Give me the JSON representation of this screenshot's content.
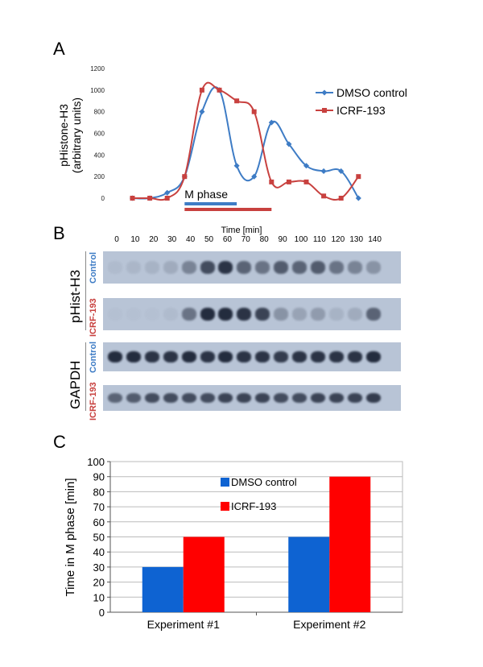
{
  "panels": {
    "a": "A",
    "b": "B",
    "c": "C"
  },
  "colors": {
    "dmso": "#3E7CC5",
    "icrf": "#C8413F",
    "dmso_bar": "#0E63D2",
    "icrf_bar": "#FF0000",
    "blot_bg": "#b8c4d6",
    "band": "#1c2436"
  },
  "chart_data": [
    {
      "type": "line",
      "ylabel_line1": "pHistone-H3",
      "ylabel_line2": "(arbitrary units)",
      "xlabel": "Time [min]",
      "x": [
        0,
        10,
        20,
        30,
        40,
        50,
        60,
        70,
        80,
        90,
        100,
        110,
        120,
        130,
        140
      ],
      "ylim": [
        0,
        1200
      ],
      "yticks": [
        0,
        200,
        400,
        600,
        800,
        1000,
        1200
      ],
      "series": [
        {
          "name": "DMSO control",
          "x": [
            10,
            20,
            30,
            40,
            50,
            60,
            70,
            80,
            90,
            100,
            110,
            120,
            130,
            140
          ],
          "values": [
            0,
            0,
            50,
            200,
            800,
            1000,
            300,
            200,
            700,
            500,
            300,
            250,
            250,
            0
          ]
        },
        {
          "name": "ICRF-193",
          "x": [
            10,
            20,
            30,
            40,
            50,
            60,
            70,
            80,
            90,
            100,
            110,
            120,
            130,
            140
          ],
          "values": [
            0,
            0,
            0,
            200,
            1000,
            1000,
            900,
            800,
            150,
            150,
            150,
            20,
            0,
            200
          ]
        }
      ],
      "annotation": "M phase",
      "mphase": {
        "dmso": [
          40,
          70
        ],
        "icrf": [
          40,
          90
        ]
      }
    },
    {
      "type": "bar",
      "ylabel": "Time in M phase [min]",
      "categories": [
        "Experiment #1",
        "Experiment #2"
      ],
      "ylim": [
        0,
        100
      ],
      "yticks": [
        0,
        10,
        20,
        30,
        40,
        50,
        60,
        70,
        80,
        90,
        100
      ],
      "series": [
        {
          "name": "DMSO control",
          "values": [
            30,
            50
          ]
        },
        {
          "name": "ICRF-193",
          "values": [
            50,
            90
          ]
        }
      ]
    }
  ],
  "blot": {
    "time_labels": [
      "0",
      "10",
      "20",
      "30",
      "40",
      "50",
      "60",
      "70",
      "80",
      "90",
      "100",
      "110",
      "120",
      "130",
      "140"
    ],
    "groups": [
      {
        "label": "pHist-H3",
        "rows": [
          {
            "label": "Control",
            "intensity": [
              0.05,
              0.08,
              0.1,
              0.15,
              0.4,
              0.75,
              0.9,
              0.6,
              0.5,
              0.65,
              0.6,
              0.65,
              0.5,
              0.4,
              0.3
            ]
          },
          {
            "label": "ICRF-193",
            "intensity": [
              0.02,
              0.02,
              0.02,
              0.05,
              0.5,
              0.95,
              0.95,
              0.9,
              0.8,
              0.3,
              0.2,
              0.25,
              0.1,
              0.15,
              0.6
            ]
          }
        ]
      },
      {
        "label": "GAPDH",
        "rows": [
          {
            "label": "Control",
            "intensity": [
              0.95,
              0.95,
              0.9,
              0.9,
              0.95,
              0.9,
              0.95,
              0.9,
              0.9,
              0.85,
              0.9,
              0.9,
              0.9,
              0.9,
              0.95
            ]
          },
          {
            "label": "ICRF-193",
            "intensity": [
              0.6,
              0.65,
              0.75,
              0.75,
              0.75,
              0.75,
              0.8,
              0.8,
              0.8,
              0.75,
              0.75,
              0.8,
              0.8,
              0.8,
              0.85
            ]
          }
        ]
      }
    ]
  }
}
